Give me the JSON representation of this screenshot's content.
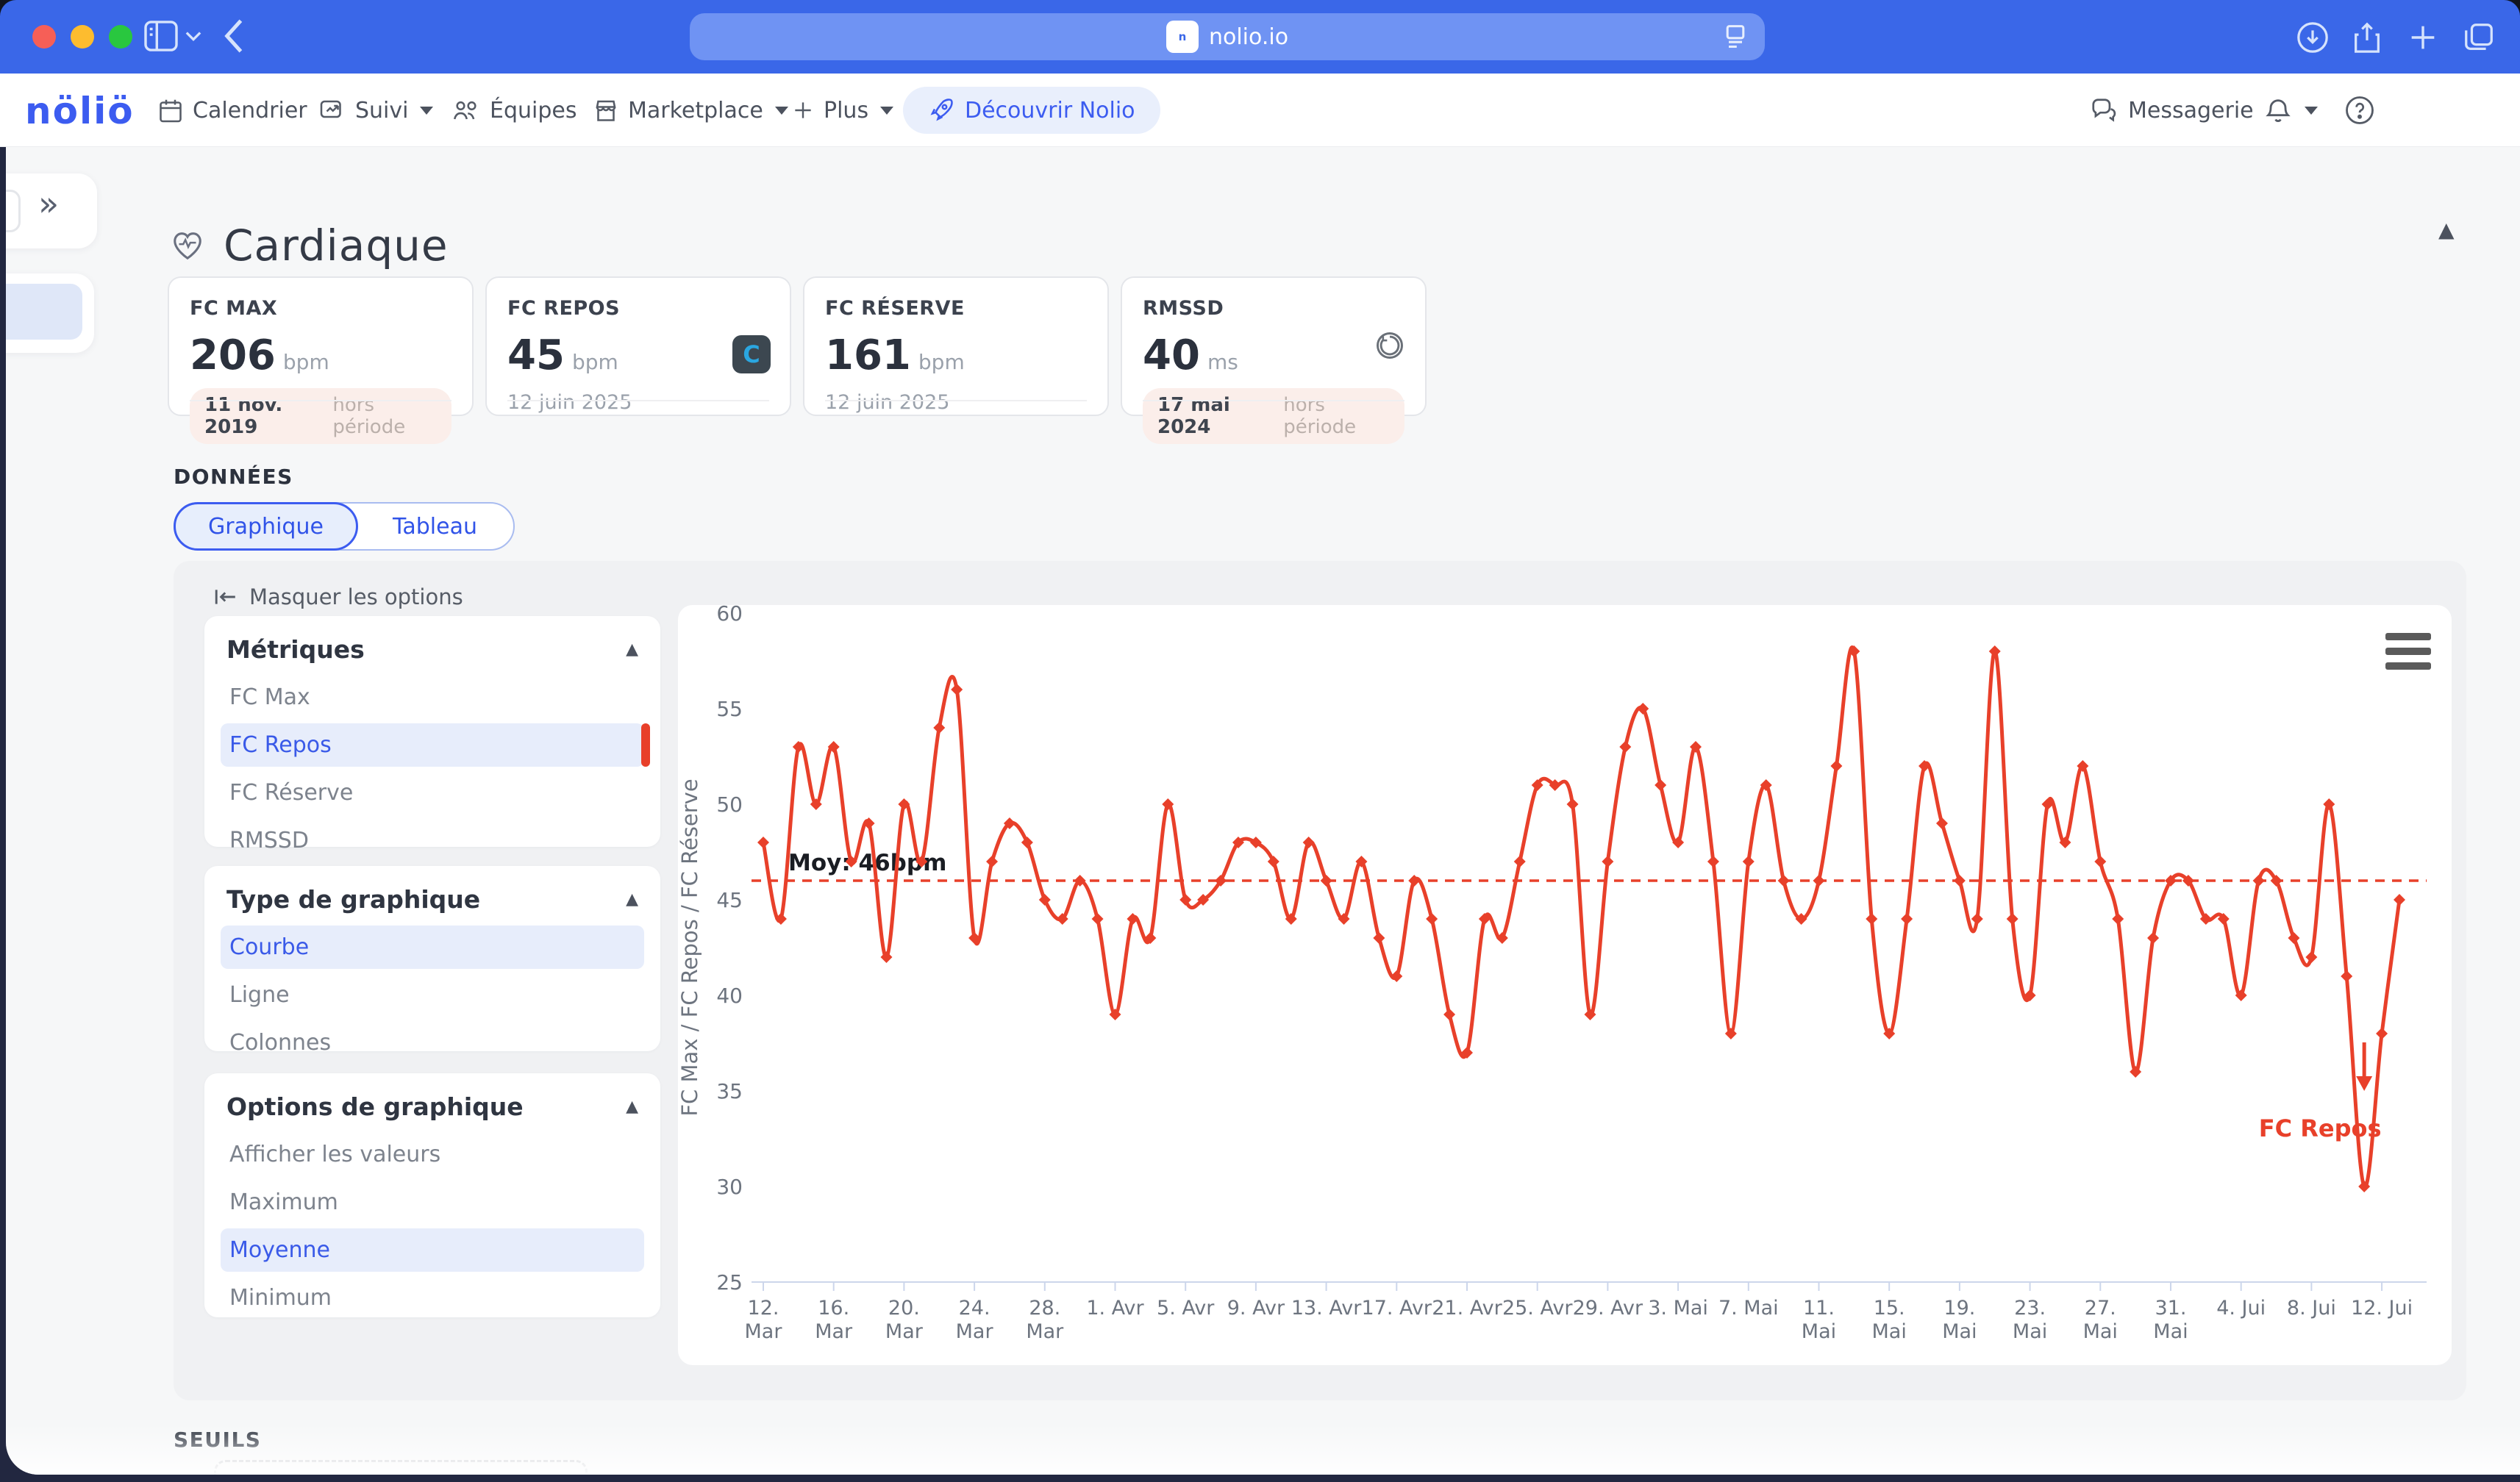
{
  "browser": {
    "address": "nolio.io",
    "favicon_label": "n"
  },
  "nav": {
    "logo": "nöliö",
    "items": [
      {
        "label": "Calendrier",
        "dropdown": false
      },
      {
        "label": "Suivi",
        "dropdown": true
      },
      {
        "label": "Équipes",
        "dropdown": false
      },
      {
        "label": "Marketplace",
        "dropdown": true
      },
      {
        "label": "Plus",
        "dropdown": true
      }
    ],
    "discover_label": "Découvrir Nolio",
    "messaging_label": "Messagerie"
  },
  "page": {
    "title": "Cardiaque",
    "donnees_label": "DONNÉES",
    "seuils_label": "SEUILS",
    "hide_options_label": "Masquer les options",
    "tabs": [
      {
        "label": "Graphique"
      },
      {
        "label": "Tableau"
      }
    ]
  },
  "metric_cards": [
    {
      "label": "FC MAX",
      "value": "206",
      "unit": "bpm",
      "date": "11 nov. 2019",
      "badge_note": "hors période"
    },
    {
      "label": "FC REPOS",
      "value": "45",
      "unit": "bpm",
      "date": "12 juin 2025",
      "source_icon": "garmin-connect"
    },
    {
      "label": "FC RÉSERVE",
      "value": "161",
      "unit": "bpm",
      "date": "12 juin 2025"
    },
    {
      "label": "RMSSD",
      "value": "40",
      "unit": "ms",
      "date": "17 mai 2024",
      "badge_note": "hors période",
      "source_icon": "history"
    }
  ],
  "options": {
    "sections": [
      {
        "title": "Métriques",
        "items": [
          "FC Max",
          "FC Repos",
          "FC Réserve",
          "RMSSD"
        ],
        "selected": 1
      },
      {
        "title": "Type de graphique",
        "items": [
          "Courbe",
          "Ligne",
          "Colonnes"
        ],
        "selected": 0
      },
      {
        "title": "Options de graphique",
        "items": [
          "Afficher les valeurs",
          "Maximum",
          "Moyenne",
          "Minimum"
        ],
        "selected": 2
      }
    ]
  },
  "chart_data": {
    "type": "line",
    "title": "",
    "ylabel": "FC Max / FC Repos / FC Réserve",
    "ylim": [
      25,
      60
    ],
    "yticks": [
      60,
      55,
      50,
      45,
      40,
      35,
      30,
      25
    ],
    "grid": false,
    "legend_position": "none",
    "mean_line": {
      "value": 46,
      "label": "Moy: 46bpm"
    },
    "series_label": "FC Repos",
    "tick_every": 4,
    "tick_labels": [
      {
        "t": "12.",
        "b": "Mar"
      },
      {
        "t": "16.",
        "b": "Mar"
      },
      {
        "t": "20.",
        "b": "Mar"
      },
      {
        "t": "24.",
        "b": "Mar"
      },
      {
        "t": "28.",
        "b": "Mar"
      },
      {
        "t": "1. Avr",
        "b": ""
      },
      {
        "t": "5. Avr",
        "b": ""
      },
      {
        "t": "9. Avr",
        "b": ""
      },
      {
        "t": "13. Avr",
        "b": ""
      },
      {
        "t": "17. Avr",
        "b": ""
      },
      {
        "t": "21. Avr",
        "b": ""
      },
      {
        "t": "25. Avr",
        "b": ""
      },
      {
        "t": "29. Avr",
        "b": ""
      },
      {
        "t": "3. Mai",
        "b": ""
      },
      {
        "t": "7. Mai",
        "b": ""
      },
      {
        "t": "11.",
        "b": "Mai"
      },
      {
        "t": "15.",
        "b": "Mai"
      },
      {
        "t": "19.",
        "b": "Mai"
      },
      {
        "t": "23.",
        "b": "Mai"
      },
      {
        "t": "27.",
        "b": "Mai"
      },
      {
        "t": "31.",
        "b": "Mai"
      },
      {
        "t": "4. Jui",
        "b": ""
      },
      {
        "t": "8. Jui",
        "b": ""
      },
      {
        "t": "12. Jui",
        "b": ""
      }
    ],
    "series": [
      {
        "name": "FC Repos",
        "color": "#e8402a",
        "values": [
          48,
          44,
          53,
          50,
          53,
          47,
          49,
          42,
          50,
          47,
          54,
          56,
          43,
          47,
          49,
          48,
          45,
          44,
          46,
          44,
          39,
          44,
          43,
          50,
          45,
          45,
          46,
          48,
          48,
          47,
          44,
          48,
          46,
          44,
          47,
          43,
          41,
          46,
          44,
          39,
          37,
          44,
          43,
          47,
          51,
          51,
          50,
          39,
          47,
          53,
          55,
          51,
          48,
          53,
          47,
          38,
          47,
          51,
          46,
          44,
          46,
          52,
          58,
          44,
          38,
          44,
          52,
          49,
          46,
          44,
          58,
          44,
          40,
          50,
          48,
          52,
          47,
          44,
          36,
          43,
          46,
          46,
          44,
          44,
          40,
          46,
          46,
          43,
          42,
          50,
          41,
          30,
          38,
          45
        ]
      }
    ]
  },
  "colors": {
    "titlebar": "#3a67e8",
    "accent_blue": "#3c5cf0",
    "selected_bg": "#e7edfb",
    "series_red": "#e8402a",
    "badge_bg": "#fbeeea",
    "axis_text": "#6d747f",
    "axis_line": "#ccd6eb",
    "sheet_bg": "#f6f7f8",
    "panel_bg": "#f0f1f3"
  }
}
